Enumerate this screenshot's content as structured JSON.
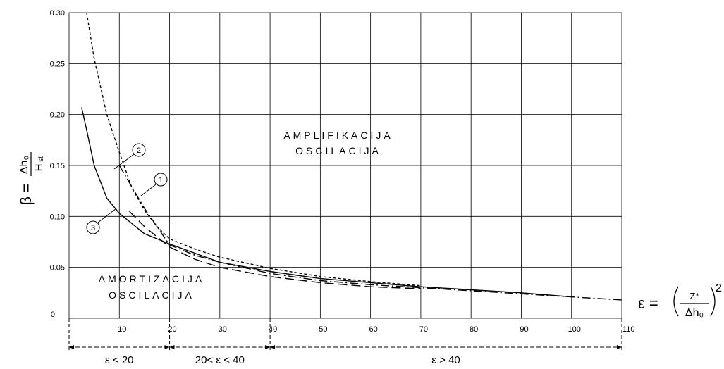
{
  "chart_data": {
    "type": "line",
    "x_ticks": [
      "10",
      "20",
      "30",
      "40",
      "50",
      "60",
      "70",
      "80",
      "90",
      "100",
      "110"
    ],
    "y_ticks": [
      "0",
      "0.05",
      "0.10",
      "0.15",
      "0.20",
      "0.25",
      "0.30"
    ],
    "xlim": [
      0,
      110
    ],
    "ylim": [
      0,
      0.3
    ],
    "grid": true,
    "ylabel": {
      "lhs": "β =",
      "num": "Δh₀",
      "den_main": "H",
      "den_sub": "st"
    },
    "xlabel": {
      "lhs": "ε =",
      "num": "Z*",
      "den": "Δh₀",
      "exp": "2"
    },
    "series": [
      {
        "name": "1",
        "style": "dash-dot",
        "x": [
          10,
          15,
          20,
          25,
          30,
          40,
          50,
          60,
          70,
          80,
          90,
          100,
          110
        ],
        "y": [
          0.15,
          0.108,
          0.072,
          0.062,
          0.055,
          0.044,
          0.037,
          0.033,
          0.03,
          0.027,
          0.024,
          0.021,
          0.018
        ]
      },
      {
        "name": "2",
        "style": "short-dash",
        "x": [
          3.5,
          5,
          7.5,
          10,
          12.5,
          15,
          17.5,
          20,
          25,
          30,
          40,
          50,
          60,
          70
        ],
        "y": [
          0.3,
          0.255,
          0.2,
          0.163,
          0.128,
          0.106,
          0.09,
          0.078,
          0.068,
          0.06,
          0.049,
          0.041,
          0.036,
          0.032
        ]
      },
      {
        "name": "3",
        "style": "solid",
        "x": [
          2.5,
          3.5,
          5,
          7.5,
          10,
          15,
          20,
          30,
          40,
          50,
          60,
          70,
          80,
          90,
          100
        ],
        "y": [
          0.207,
          0.185,
          0.15,
          0.118,
          0.103,
          0.083,
          0.073,
          0.055,
          0.046,
          0.039,
          0.035,
          0.031,
          0.028,
          0.025,
          0.021
        ]
      },
      {
        "name": "",
        "style": "long-dash",
        "x": [
          12,
          15,
          20,
          25,
          30,
          40,
          50,
          60,
          70
        ],
        "y": [
          0.105,
          0.09,
          0.07,
          0.058,
          0.05,
          0.041,
          0.035,
          0.031,
          0.029
        ]
      }
    ],
    "callouts": [
      "1",
      "2",
      "3"
    ],
    "annotations": {
      "amplification": [
        "AMPLIFIKACIJA",
        "OSCILACIJA"
      ],
      "damping": [
        "AMORTIZACIJA",
        "OSCILACIJA"
      ]
    },
    "ranges": [
      "ε < 20",
      "20< ε < 40",
      "ε > 40"
    ],
    "range_bounds": [
      [
        0,
        20
      ],
      [
        20,
        40
      ],
      [
        40,
        110
      ]
    ]
  }
}
